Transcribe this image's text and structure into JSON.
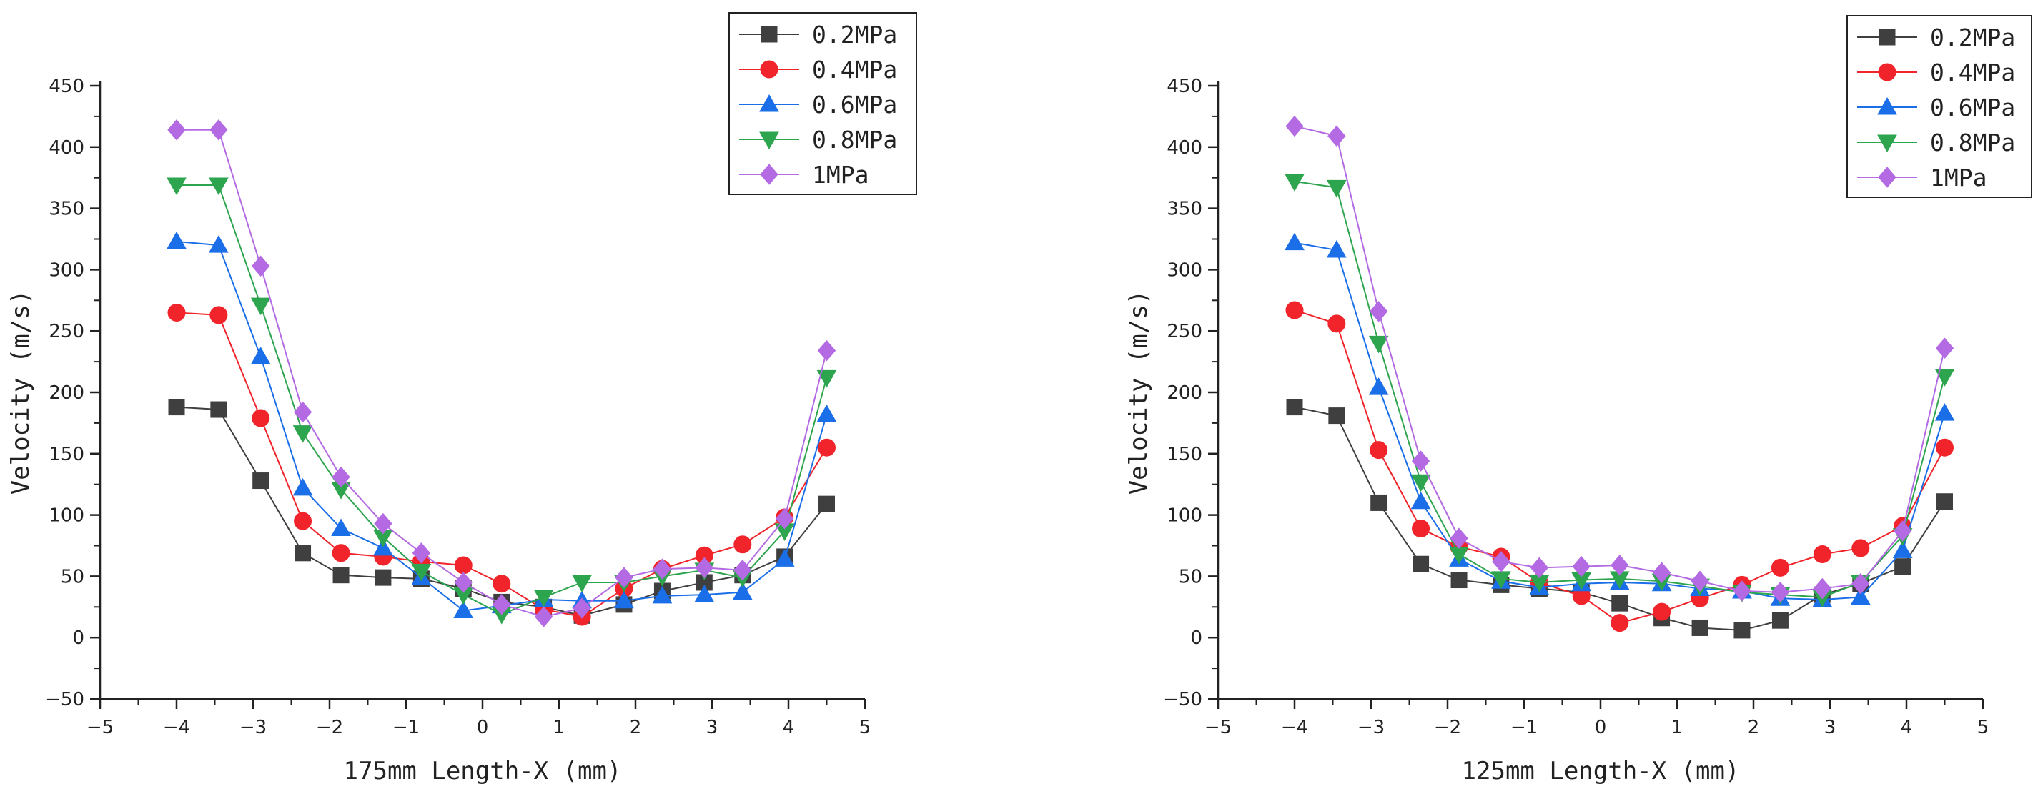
{
  "chart_data": [
    {
      "type": "line",
      "title": "",
      "xlabel": "175mm Length-X (mm)",
      "ylabel": "Velocity (m/s)",
      "xlim": [
        -5,
        5
      ],
      "ylim": [
        -50,
        450
      ],
      "xticks": [
        -5,
        -4,
        -3,
        -2,
        -1,
        0,
        1,
        2,
        3,
        4,
        5
      ],
      "yticks": [
        -50,
        0,
        50,
        100,
        150,
        200,
        250,
        300,
        350,
        400,
        450
      ],
      "xtick_labels": [
        "−5",
        "−4",
        "−3",
        "−2",
        "−1",
        "0",
        "1",
        "2",
        "3",
        "4",
        "5"
      ],
      "ytick_labels": [
        "−50",
        "0",
        "50",
        "100",
        "150",
        "200",
        "250",
        "300",
        "350",
        "400",
        "450"
      ],
      "grid": false,
      "legend_position": "top-right",
      "x": [
        -4.0,
        -3.45,
        -2.9,
        -2.35,
        -1.85,
        -1.3,
        -0.8,
        -0.25,
        0.25,
        0.8,
        1.3,
        1.85,
        2.35,
        2.9,
        3.4,
        3.95,
        4.5
      ],
      "series": [
        {
          "name": "0.2MPa",
          "marker": "square",
          "color": "#3f3f3f",
          "values": [
            188,
            186,
            128,
            69,
            51,
            49,
            48,
            40,
            29,
            25,
            18,
            27,
            38,
            45,
            51,
            66,
            109
          ]
        },
        {
          "name": "0.4MPa",
          "marker": "circle",
          "color": "#f0242a",
          "values": [
            265,
            263,
            179,
            95,
            69,
            66,
            62,
            59,
            44,
            23,
            17,
            40,
            56,
            67,
            76,
            98,
            155
          ]
        },
        {
          "name": "0.6MPa",
          "marker": "triangle-up",
          "color": "#1a6ee8",
          "values": [
            323,
            320,
            229,
            122,
            89,
            73,
            49,
            22,
            26,
            31,
            30,
            30,
            34,
            35,
            37,
            64,
            182
          ]
        },
        {
          "name": "0.8MPa",
          "marker": "triangle-down",
          "color": "#2da44e",
          "values": [
            369,
            369,
            271,
            167,
            121,
            82,
            54,
            35,
            19,
            33,
            45,
            45,
            50,
            55,
            49,
            87,
            212
          ]
        },
        {
          "name": "1MPa",
          "marker": "diamond",
          "color": "#b36ae2",
          "values": [
            414,
            414,
            303,
            184,
            131,
            93,
            69,
            45,
            27,
            17,
            24,
            49,
            56,
            57,
            55,
            97,
            234
          ]
        }
      ]
    },
    {
      "type": "line",
      "title": "",
      "xlabel": "125mm Length-X (mm)",
      "ylabel": "Velocity (m/s)",
      "xlim": [
        -5,
        5
      ],
      "ylim": [
        -50,
        450
      ],
      "xticks": [
        -5,
        -4,
        -3,
        -2,
        -1,
        0,
        1,
        2,
        3,
        4,
        5
      ],
      "yticks": [
        -50,
        0,
        50,
        100,
        150,
        200,
        250,
        300,
        350,
        400,
        450
      ],
      "xtick_labels": [
        "−5",
        "−4",
        "−3",
        "−2",
        "−1",
        "0",
        "1",
        "2",
        "3",
        "4",
        "5"
      ],
      "ytick_labels": [
        "−50",
        "0",
        "50",
        "100",
        "150",
        "200",
        "250",
        "300",
        "350",
        "400",
        "450"
      ],
      "grid": false,
      "legend_position": "top-right",
      "x": [
        -4.0,
        -3.45,
        -2.9,
        -2.35,
        -1.85,
        -1.3,
        -0.8,
        -0.25,
        0.25,
        0.8,
        1.3,
        1.85,
        2.35,
        2.9,
        3.4,
        3.95,
        4.5
      ],
      "series": [
        {
          "name": "0.2MPa",
          "marker": "square",
          "color": "#3f3f3f",
          "values": [
            188,
            181,
            110,
            60,
            47,
            43,
            40,
            37,
            28,
            16,
            8,
            6,
            14,
            35,
            44,
            58,
            111
          ]
        },
        {
          "name": "0.4MPa",
          "marker": "circle",
          "color": "#f0242a",
          "values": [
            267,
            256,
            153,
            89,
            74,
            66,
            45,
            34,
            12,
            21,
            32,
            43,
            57,
            68,
            73,
            91,
            155
          ]
        },
        {
          "name": "0.6MPa",
          "marker": "triangle-up",
          "color": "#1a6ee8",
          "values": [
            322,
            316,
            204,
            111,
            64,
            46,
            41,
            44,
            45,
            44,
            40,
            38,
            32,
            31,
            33,
            71,
            183
          ]
        },
        {
          "name": "0.8MPa",
          "marker": "triangle-down",
          "color": "#2da44e",
          "values": [
            372,
            367,
            240,
            127,
            68,
            48,
            45,
            47,
            48,
            46,
            42,
            37,
            35,
            33,
            45,
            83,
            213
          ]
        },
        {
          "name": "1MPa",
          "marker": "diamond",
          "color": "#b36ae2",
          "values": [
            417,
            409,
            266,
            144,
            81,
            62,
            57,
            58,
            59,
            53,
            46,
            38,
            37,
            40,
            44,
            87,
            236
          ]
        }
      ]
    }
  ]
}
